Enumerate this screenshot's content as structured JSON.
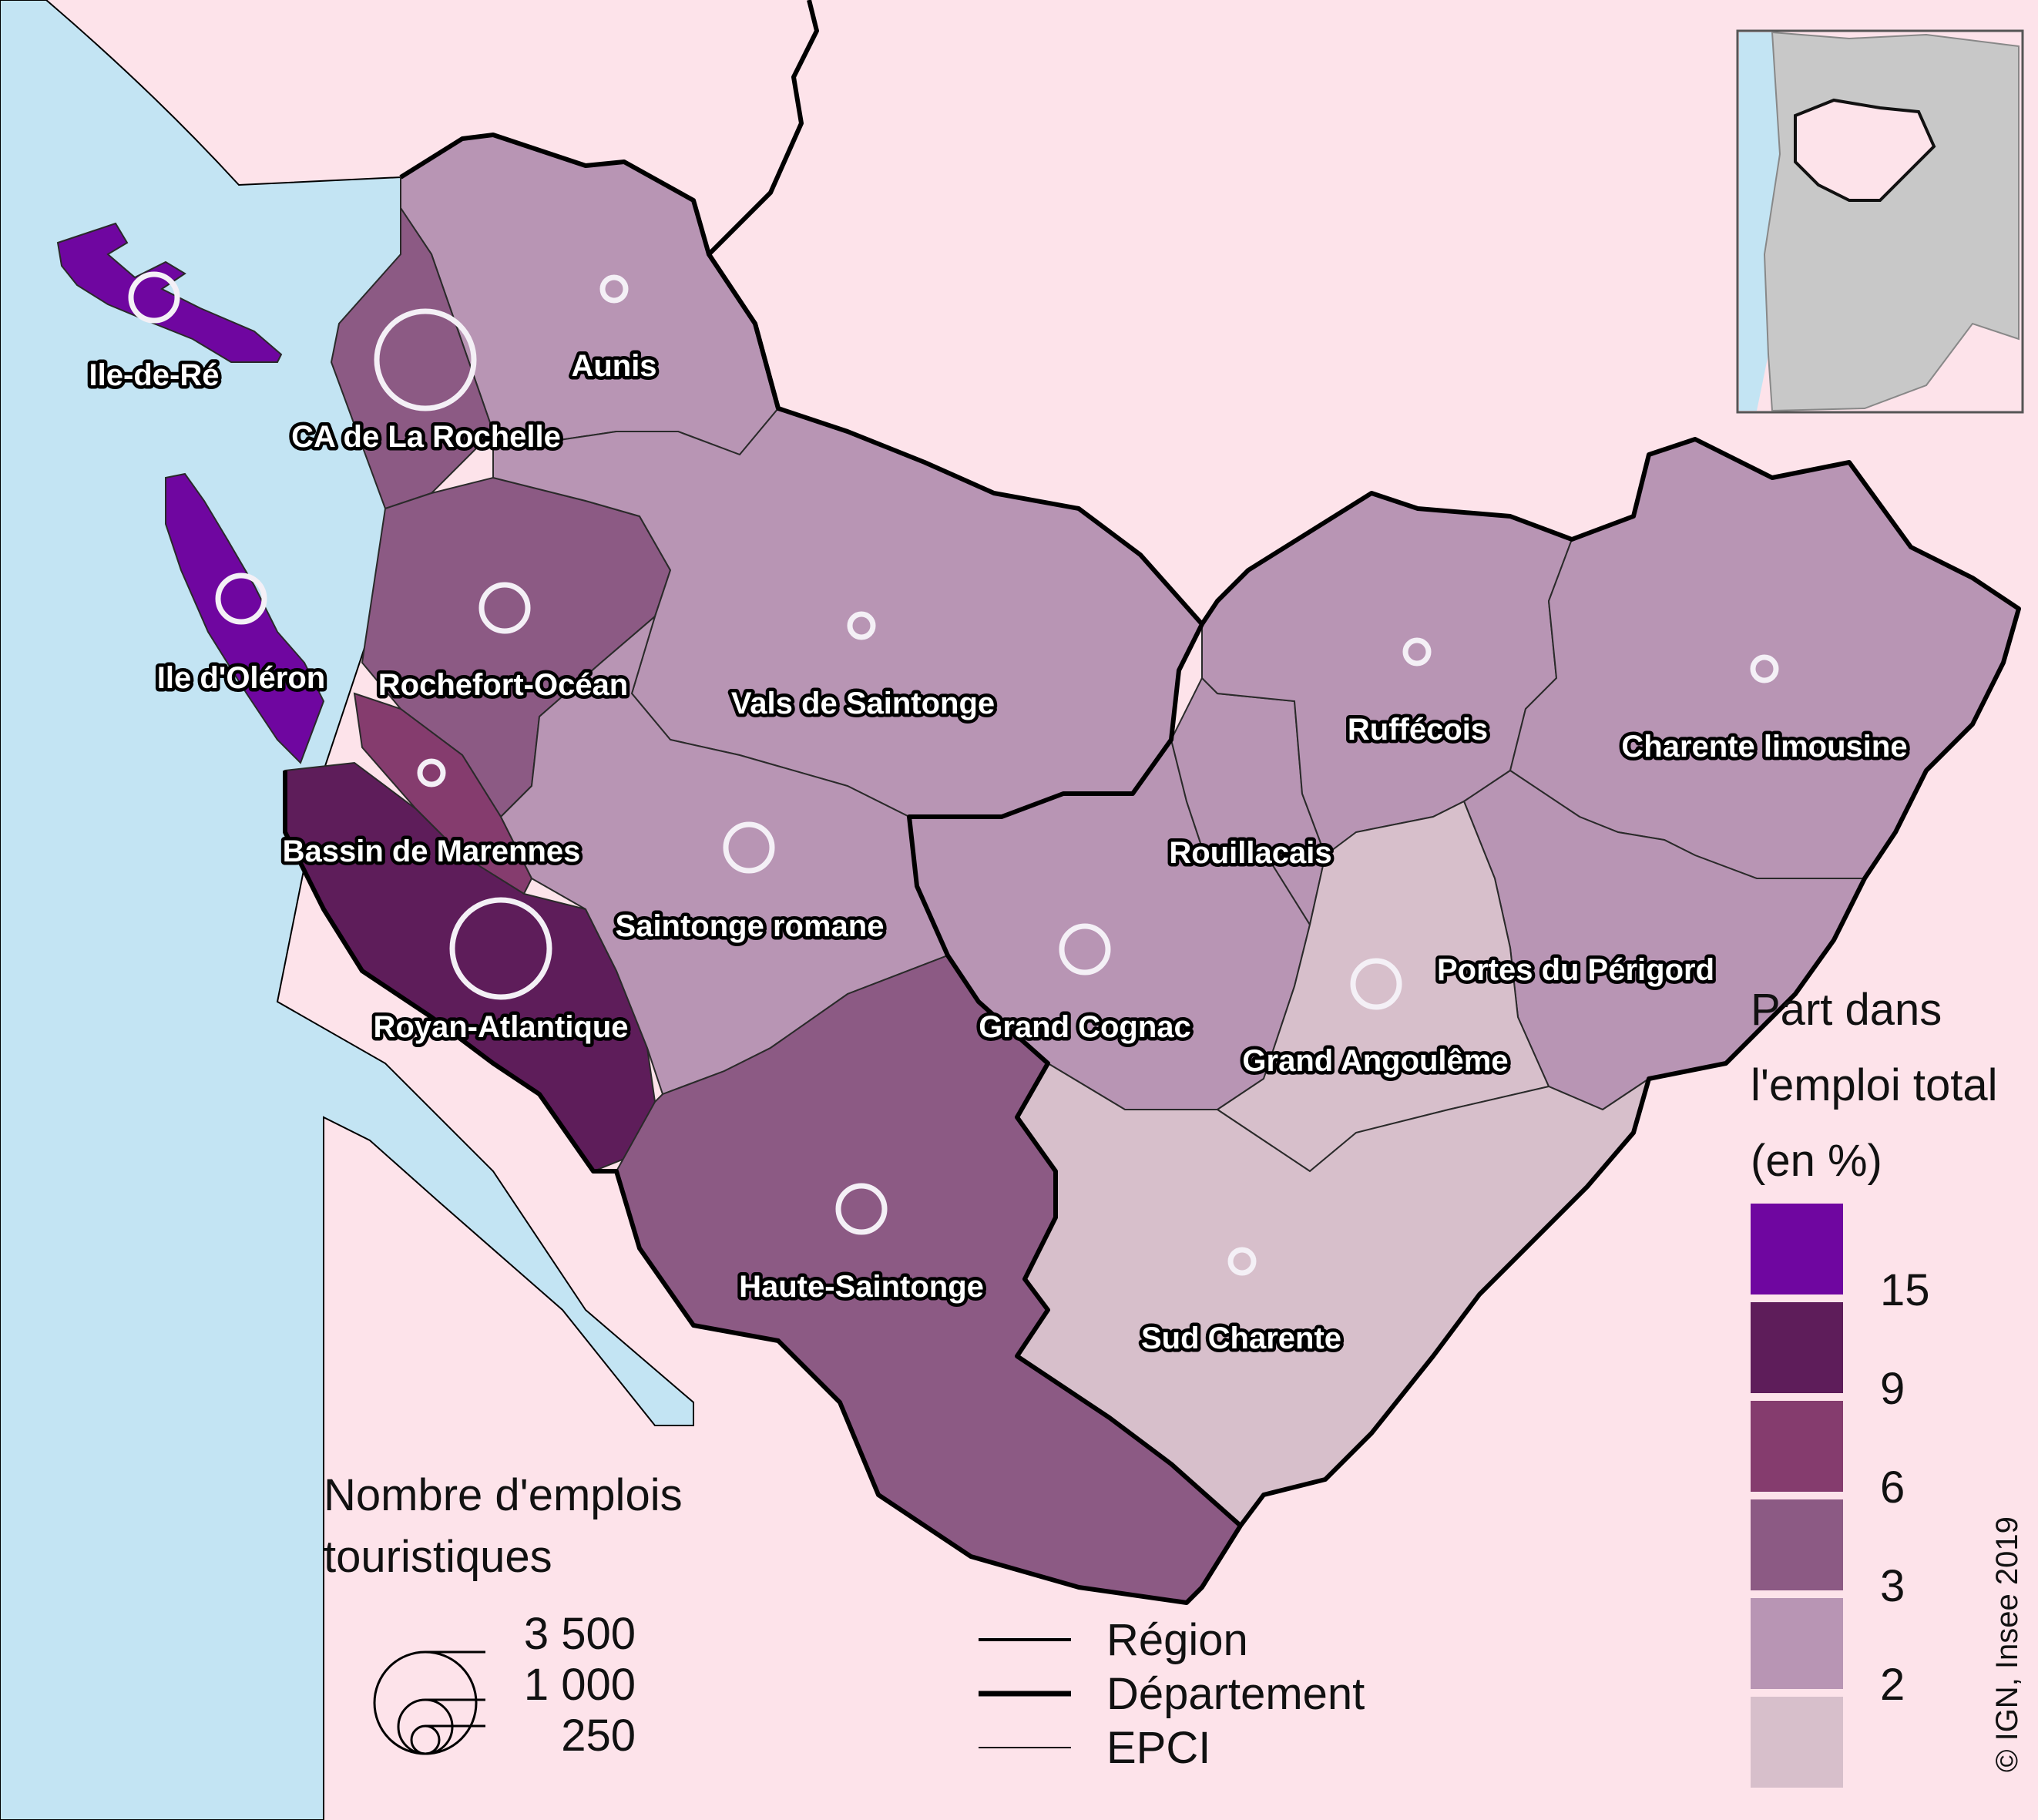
{
  "legend_share": {
    "title_lines": [
      "Part dans",
      "l'emploi total",
      "(en %)"
    ],
    "classes": [
      {
        "color": "#6f06a0"
      },
      {
        "color": "#5e1d5a"
      },
      {
        "color": "#853c6e"
      },
      {
        "color": "#8c5a84"
      },
      {
        "color": "#b895b4"
      },
      {
        "color": "#d7bfcb"
      }
    ],
    "breaks": [
      "15",
      "9",
      "6",
      "3",
      "2"
    ]
  },
  "legend_size": {
    "title_lines": [
      "Nombre d'emplois",
      "touristiques"
    ],
    "values": [
      "3 500",
      "1 000",
      "250"
    ]
  },
  "legend_lines": [
    "Région",
    "Département",
    "EPCI"
  ],
  "credit": "© IGN, Insee 2019",
  "labels": {
    "ile_de_re": "Ile-de-Ré",
    "aunis": "Aunis",
    "la_rochelle": "CA de La Rochelle",
    "oleron": "Ile d'Oléron",
    "rochefort": "Rochefort-Océan",
    "vals": "Vals de Saintonge",
    "ruffecois": "Ruffécois",
    "charente_lim": "Charente limousine",
    "marennes": "Bassin de Marennes",
    "rouillacais": "Rouillacais",
    "saintonge_rom": "Saintonge romane",
    "portes": "Portes du Périgord",
    "royan": "Royan-Atlantique",
    "cognac": "Grand Cognac",
    "angouleme": "Grand Angoulême",
    "haute_saint": "Haute-Saintonge",
    "sud_charente": "Sud Charente"
  },
  "epci": [
    {
      "id": "ile_de_re",
      "share_class": 0,
      "jobs_class": "medium"
    },
    {
      "id": "oleron",
      "share_class": 0,
      "jobs_class": "medium"
    },
    {
      "id": "royan",
      "share_class": 1,
      "jobs_class": "large"
    },
    {
      "id": "marennes",
      "share_class": 2,
      "jobs_class": "small"
    },
    {
      "id": "la_rochelle",
      "share_class": 3,
      "jobs_class": "large"
    },
    {
      "id": "rochefort",
      "share_class": 3,
      "jobs_class": "medium"
    },
    {
      "id": "haute_saint",
      "share_class": 3,
      "jobs_class": "medium"
    },
    {
      "id": "aunis",
      "share_class": 4,
      "jobs_class": "small"
    },
    {
      "id": "vals",
      "share_class": 4,
      "jobs_class": "small"
    },
    {
      "id": "saintonge_rom",
      "share_class": 4,
      "jobs_class": "medium"
    },
    {
      "id": "ruffecois",
      "share_class": 4,
      "jobs_class": "small"
    },
    {
      "id": "charente_lim",
      "share_class": 4,
      "jobs_class": "small"
    },
    {
      "id": "rouillacais",
      "share_class": 4,
      "jobs_class": "none"
    },
    {
      "id": "cognac",
      "share_class": 4,
      "jobs_class": "medium"
    },
    {
      "id": "portes",
      "share_class": 4,
      "jobs_class": "none"
    },
    {
      "id": "angouleme",
      "share_class": 5,
      "jobs_class": "medium"
    },
    {
      "id": "sud_charente",
      "share_class": 5,
      "jobs_class": "small"
    }
  ]
}
